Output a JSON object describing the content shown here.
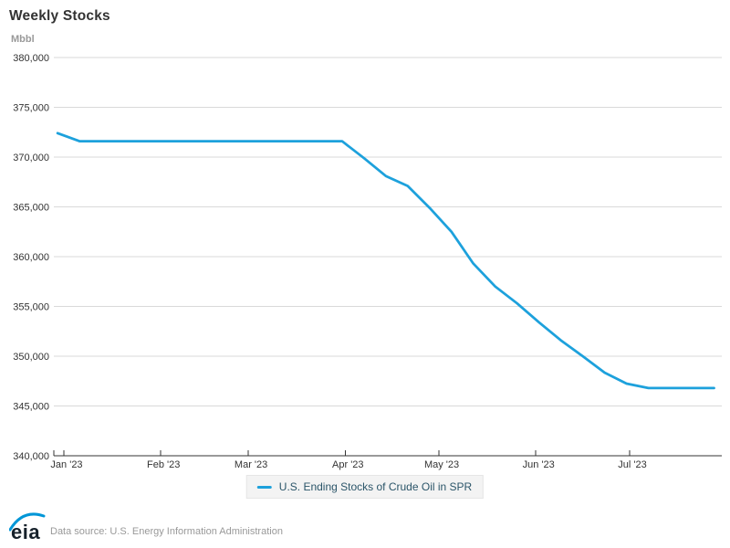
{
  "chart_data": {
    "type": "line",
    "title": "Weekly Stocks",
    "y_axis": {
      "title": "Mbbl",
      "min": 340000,
      "max": 380000,
      "tick_values": [
        340000,
        345000,
        350000,
        355000,
        360000,
        365000,
        370000,
        375000,
        380000
      ],
      "tick_labels": [
        "340,000",
        "345,000",
        "350,000",
        "355,000",
        "360,000",
        "365,000",
        "370,000",
        "375,000",
        "380,000"
      ]
    },
    "x_axis": {
      "tick_labels": [
        "Jan '23",
        "Feb '23",
        "Mar '23",
        "Apr '23",
        "May '23",
        "Jun '23",
        "Jul '23"
      ],
      "tick_day_offsets": [
        0,
        31,
        59,
        90,
        120,
        151,
        181
      ],
      "range_start": "2022-12-30",
      "range_end": "2023-07-30"
    },
    "grid": true,
    "legend": {
      "position": "bottom",
      "label": "U.S. Ending Stocks of Crude Oil in SPR"
    },
    "series": [
      {
        "name": "U.S. Ending Stocks of Crude Oil in SPR",
        "color": "#1da1dc",
        "points": [
          {
            "date": "2022-12-30",
            "value": 372400
          },
          {
            "date": "2023-01-06",
            "value": 371600
          },
          {
            "date": "2023-01-13",
            "value": 371600
          },
          {
            "date": "2023-01-20",
            "value": 371600
          },
          {
            "date": "2023-01-27",
            "value": 371600
          },
          {
            "date": "2023-02-03",
            "value": 371600
          },
          {
            "date": "2023-02-10",
            "value": 371600
          },
          {
            "date": "2023-02-17",
            "value": 371600
          },
          {
            "date": "2023-02-24",
            "value": 371600
          },
          {
            "date": "2023-03-03",
            "value": 371600
          },
          {
            "date": "2023-03-10",
            "value": 371600
          },
          {
            "date": "2023-03-17",
            "value": 371600
          },
          {
            "date": "2023-03-24",
            "value": 371600
          },
          {
            "date": "2023-03-31",
            "value": 371600
          },
          {
            "date": "2023-04-07",
            "value": 369900
          },
          {
            "date": "2023-04-14",
            "value": 368100
          },
          {
            "date": "2023-04-21",
            "value": 367100
          },
          {
            "date": "2023-04-28",
            "value": 364900
          },
          {
            "date": "2023-05-05",
            "value": 362500
          },
          {
            "date": "2023-05-12",
            "value": 359300
          },
          {
            "date": "2023-05-19",
            "value": 357000
          },
          {
            "date": "2023-05-26",
            "value": 355300
          },
          {
            "date": "2023-06-02",
            "value": 353400
          },
          {
            "date": "2023-06-09",
            "value": 351600
          },
          {
            "date": "2023-06-16",
            "value": 350000
          },
          {
            "date": "2023-06-23",
            "value": 348350
          },
          {
            "date": "2023-06-30",
            "value": 347250
          },
          {
            "date": "2023-07-07",
            "value": 346800
          },
          {
            "date": "2023-07-14",
            "value": 346800
          },
          {
            "date": "2023-07-21",
            "value": 346800
          },
          {
            "date": "2023-07-28",
            "value": 346800
          }
        ]
      }
    ]
  },
  "footer": {
    "logo_text": "eia",
    "source_text": "Data source: U.S. Energy Information Administration"
  },
  "colors": {
    "line": "#1da1dc",
    "grid": "#d9d9d9",
    "axis": "#333333",
    "tick_text": "#333333",
    "muted_text": "#999999",
    "legend_text": "#2b5569",
    "legend_bg": "#f3f3f3",
    "legend_border": "#e6e6e6",
    "logo_blue": "#0096d7",
    "logo_dark": "#16212b"
  }
}
